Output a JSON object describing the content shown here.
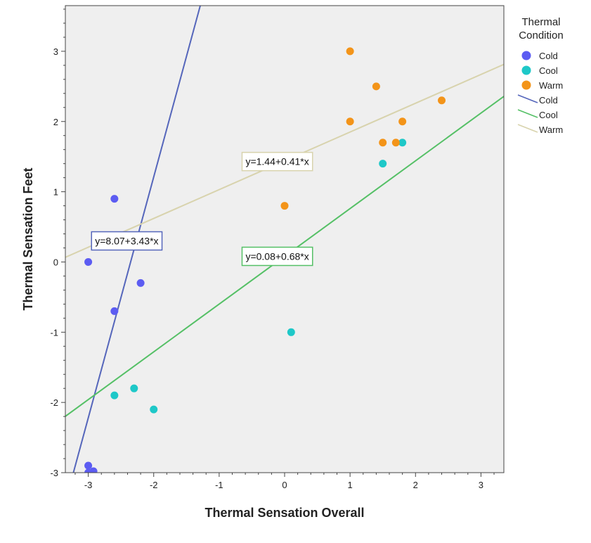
{
  "chart_data": {
    "type": "scatter",
    "xlabel": "Thermal Sensation Overall",
    "ylabel": "Thermal Sensation Feet",
    "xlim": [
      -3.35,
      3.35
    ],
    "ylim": [
      -3.0,
      3.65
    ],
    "xticks": [
      -3,
      -2,
      -1,
      0,
      1,
      2,
      3
    ],
    "yticks": [
      -3,
      -2,
      -1,
      0,
      1,
      2,
      3
    ],
    "grid": false,
    "background": "#efefef",
    "legend": {
      "title_line1": "Thermal",
      "title_line2": "Condition",
      "placement": "right"
    },
    "series": [
      {
        "name": "Cold",
        "color": "#5c5cf2",
        "line_color": "#5566bb",
        "points": [
          [
            -2.6,
            0.9
          ],
          [
            -3.0,
            0.0
          ],
          [
            -2.2,
            -0.3
          ],
          [
            -2.6,
            -0.7
          ],
          [
            -3.0,
            -2.9
          ],
          [
            -2.92,
            -2.98
          ],
          [
            -3.0,
            -3.0
          ]
        ],
        "fit": {
          "intercept": 8.07,
          "slope": 3.43,
          "label": "y=8.07+3.43*x"
        }
      },
      {
        "name": "Cool",
        "color": "#1ec8c8",
        "line_color": "#55c066",
        "points": [
          [
            1.5,
            1.4
          ],
          [
            1.8,
            1.7
          ],
          [
            0.1,
            -1.0
          ],
          [
            -2.3,
            -1.8
          ],
          [
            -2.6,
            -1.9
          ],
          [
            -2.0,
            -2.1
          ]
        ],
        "fit": {
          "intercept": 0.08,
          "slope": 0.68,
          "label": "y=0.08+0.68*x"
        }
      },
      {
        "name": "Warm",
        "color": "#f39419",
        "line_color": "#d8d3ad",
        "points": [
          [
            1.0,
            3.0
          ],
          [
            1.4,
            2.5
          ],
          [
            1.0,
            2.0
          ],
          [
            1.8,
            2.0
          ],
          [
            2.4,
            2.3
          ],
          [
            1.5,
            1.7
          ],
          [
            1.7,
            1.7
          ],
          [
            0.0,
            0.8
          ]
        ],
        "fit": {
          "intercept": 1.44,
          "slope": 0.41,
          "label": "y=1.44+0.41*x"
        }
      }
    ]
  }
}
